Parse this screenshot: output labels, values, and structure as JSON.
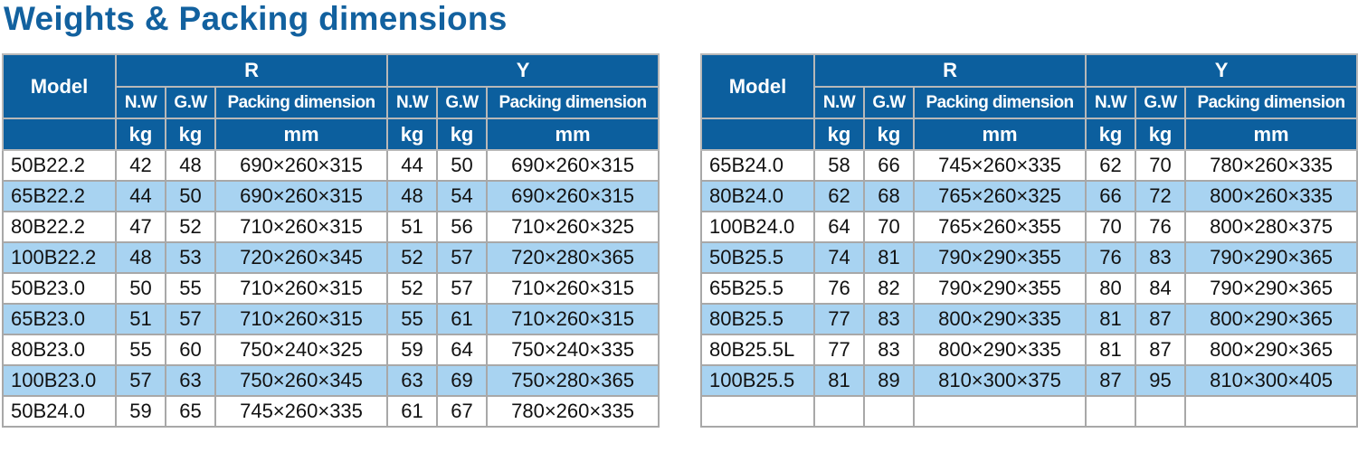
{
  "title": "Weights & Packing dimensions",
  "tables": [
    {
      "header": {
        "model": "Model",
        "groups": [
          "R",
          "Y"
        ],
        "columns": [
          "N.W",
          "G.W",
          "Packing dimension"
        ],
        "units": [
          "kg",
          "kg",
          "mm"
        ]
      },
      "rows": [
        [
          "50B22.2",
          42,
          48,
          "690×260×315",
          44,
          50,
          "690×260×315"
        ],
        [
          "65B22.2",
          44,
          50,
          "690×260×315",
          48,
          54,
          "690×260×315"
        ],
        [
          "80B22.2",
          47,
          52,
          "710×260×315",
          51,
          56,
          "710×260×325"
        ],
        [
          "100B22.2",
          48,
          53,
          "720×260×345",
          52,
          57,
          "720×280×365"
        ],
        [
          "50B23.0",
          50,
          55,
          "710×260×315",
          52,
          57,
          "710×260×315"
        ],
        [
          "65B23.0",
          51,
          57,
          "710×260×315",
          55,
          61,
          "710×260×315"
        ],
        [
          "80B23.0",
          55,
          60,
          "750×240×325",
          59,
          64,
          "750×240×335"
        ],
        [
          "100B23.0",
          57,
          63,
          "750×260×345",
          63,
          69,
          "750×280×365"
        ],
        [
          "50B24.0",
          59,
          65,
          "745×260×335",
          61,
          67,
          "780×260×335"
        ]
      ]
    },
    {
      "header": {
        "model": "Model",
        "groups": [
          "R",
          "Y"
        ],
        "columns": [
          "N.W",
          "G.W",
          "Packing dimension"
        ],
        "units": [
          "kg",
          "kg",
          "mm"
        ]
      },
      "rows": [
        [
          "65B24.0",
          58,
          66,
          "745×260×335",
          62,
          70,
          "780×260×335"
        ],
        [
          "80B24.0",
          62,
          68,
          "765×260×325",
          66,
          72,
          "800×260×335"
        ],
        [
          "100B24.0",
          64,
          70,
          "765×260×355",
          70,
          76,
          "800×280×375"
        ],
        [
          "50B25.5",
          74,
          81,
          "790×290×355",
          76,
          83,
          "790×290×365"
        ],
        [
          "65B25.5",
          76,
          82,
          "790×290×355",
          80,
          84,
          "790×290×365"
        ],
        [
          "80B25.5",
          77,
          83,
          "800×290×335",
          81,
          87,
          "800×290×365"
        ],
        [
          "80B25.5L",
          77,
          83,
          "800×290×335",
          81,
          87,
          "800×290×365"
        ],
        [
          "100B25.5",
          81,
          89,
          "810×300×375",
          87,
          95,
          "810×300×405"
        ]
      ]
    }
  ]
}
